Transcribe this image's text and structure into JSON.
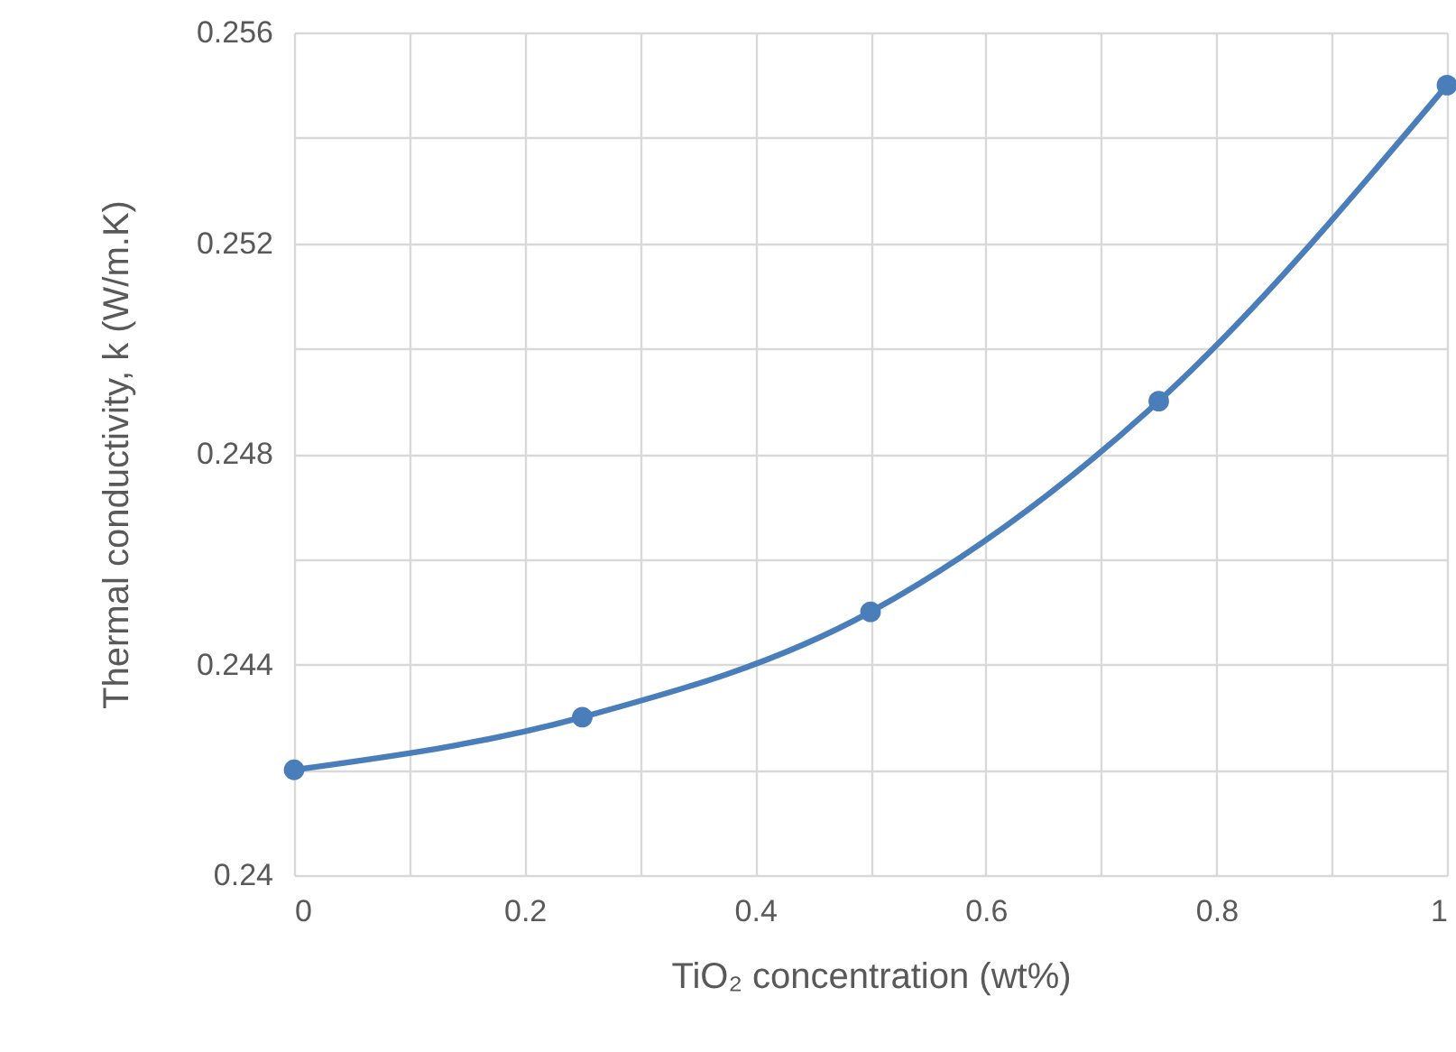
{
  "chart_data": {
    "type": "line",
    "xlabel": "TiO₂ concentration (wt%)",
    "ylabel": "Thermal conductivity, k (W/m.K)",
    "x": [
      0,
      0.25,
      0.5,
      0.75,
      1
    ],
    "series": [
      {
        "color": "#4a7ebb",
        "values": [
          0.242,
          0.243,
          0.245,
          0.249,
          0.255
        ]
      }
    ],
    "xlim": [
      0,
      1
    ],
    "xticks": [
      0,
      {
        "value": 0.1,
        "label": null
      },
      0.2,
      {
        "value": 0.3,
        "label": null
      },
      0.4,
      {
        "value": 0.5,
        "label": null
      },
      0.6,
      {
        "value": 0.7,
        "label": null
      },
      0.8,
      {
        "value": 0.9,
        "label": null
      },
      1
    ],
    "ylim": [
      0.24,
      0.256
    ],
    "yticks": [
      0.24,
      {
        "value": 0.242,
        "label": null
      },
      0.244,
      {
        "value": 0.246,
        "label": null
      },
      0.248,
      {
        "value": 0.25,
        "label": null
      },
      0.252,
      {
        "value": 0.254,
        "label": null
      },
      0.256
    ],
    "grid": true,
    "marker": "circle",
    "line_style": "solid"
  }
}
